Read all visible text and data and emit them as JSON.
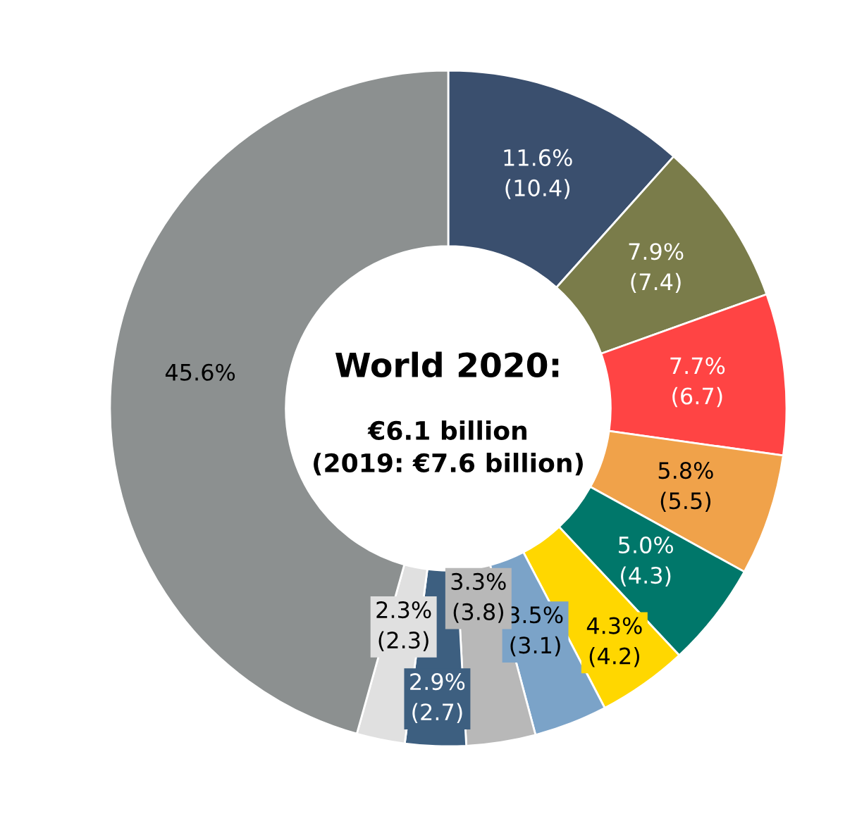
{
  "chart_data": {
    "type": "donut",
    "title": "World 2020:",
    "annotations": [
      "€6.1 billion\n(2019: €7.6 billion)"
    ],
    "categories": [
      null,
      null,
      null,
      null,
      null,
      null,
      null,
      null,
      null,
      null,
      null
    ],
    "values": [
      11.6,
      7.9,
      7.7,
      5.8,
      5.0,
      4.3,
      3.5,
      3.3,
      2.9,
      2.3,
      45.6
    ],
    "value_labels": [
      "11.6%\n(10.4)",
      "7.9%\n(7.4)",
      "7.7%\n(6.7)",
      "5.8%\n(5.5)",
      "5.0%\n(4.3)",
      "4.3%\n(4.2)",
      "3.5%\n(3.1)",
      "3.3%\n(3.8)",
      "2.9%\n(2.7)",
      "2.3%\n(2.3)",
      "45.6%"
    ],
    "colors": [
      "#3a4f6e",
      "#7a7c4a",
      "#ff4444",
      "#f0a24a",
      "#00776a",
      "#ffd700",
      "#7ba3c8",
      "#b8b8b8",
      "#3d5f80",
      "#e0e0e0",
      "#8c9090"
    ]
  }
}
